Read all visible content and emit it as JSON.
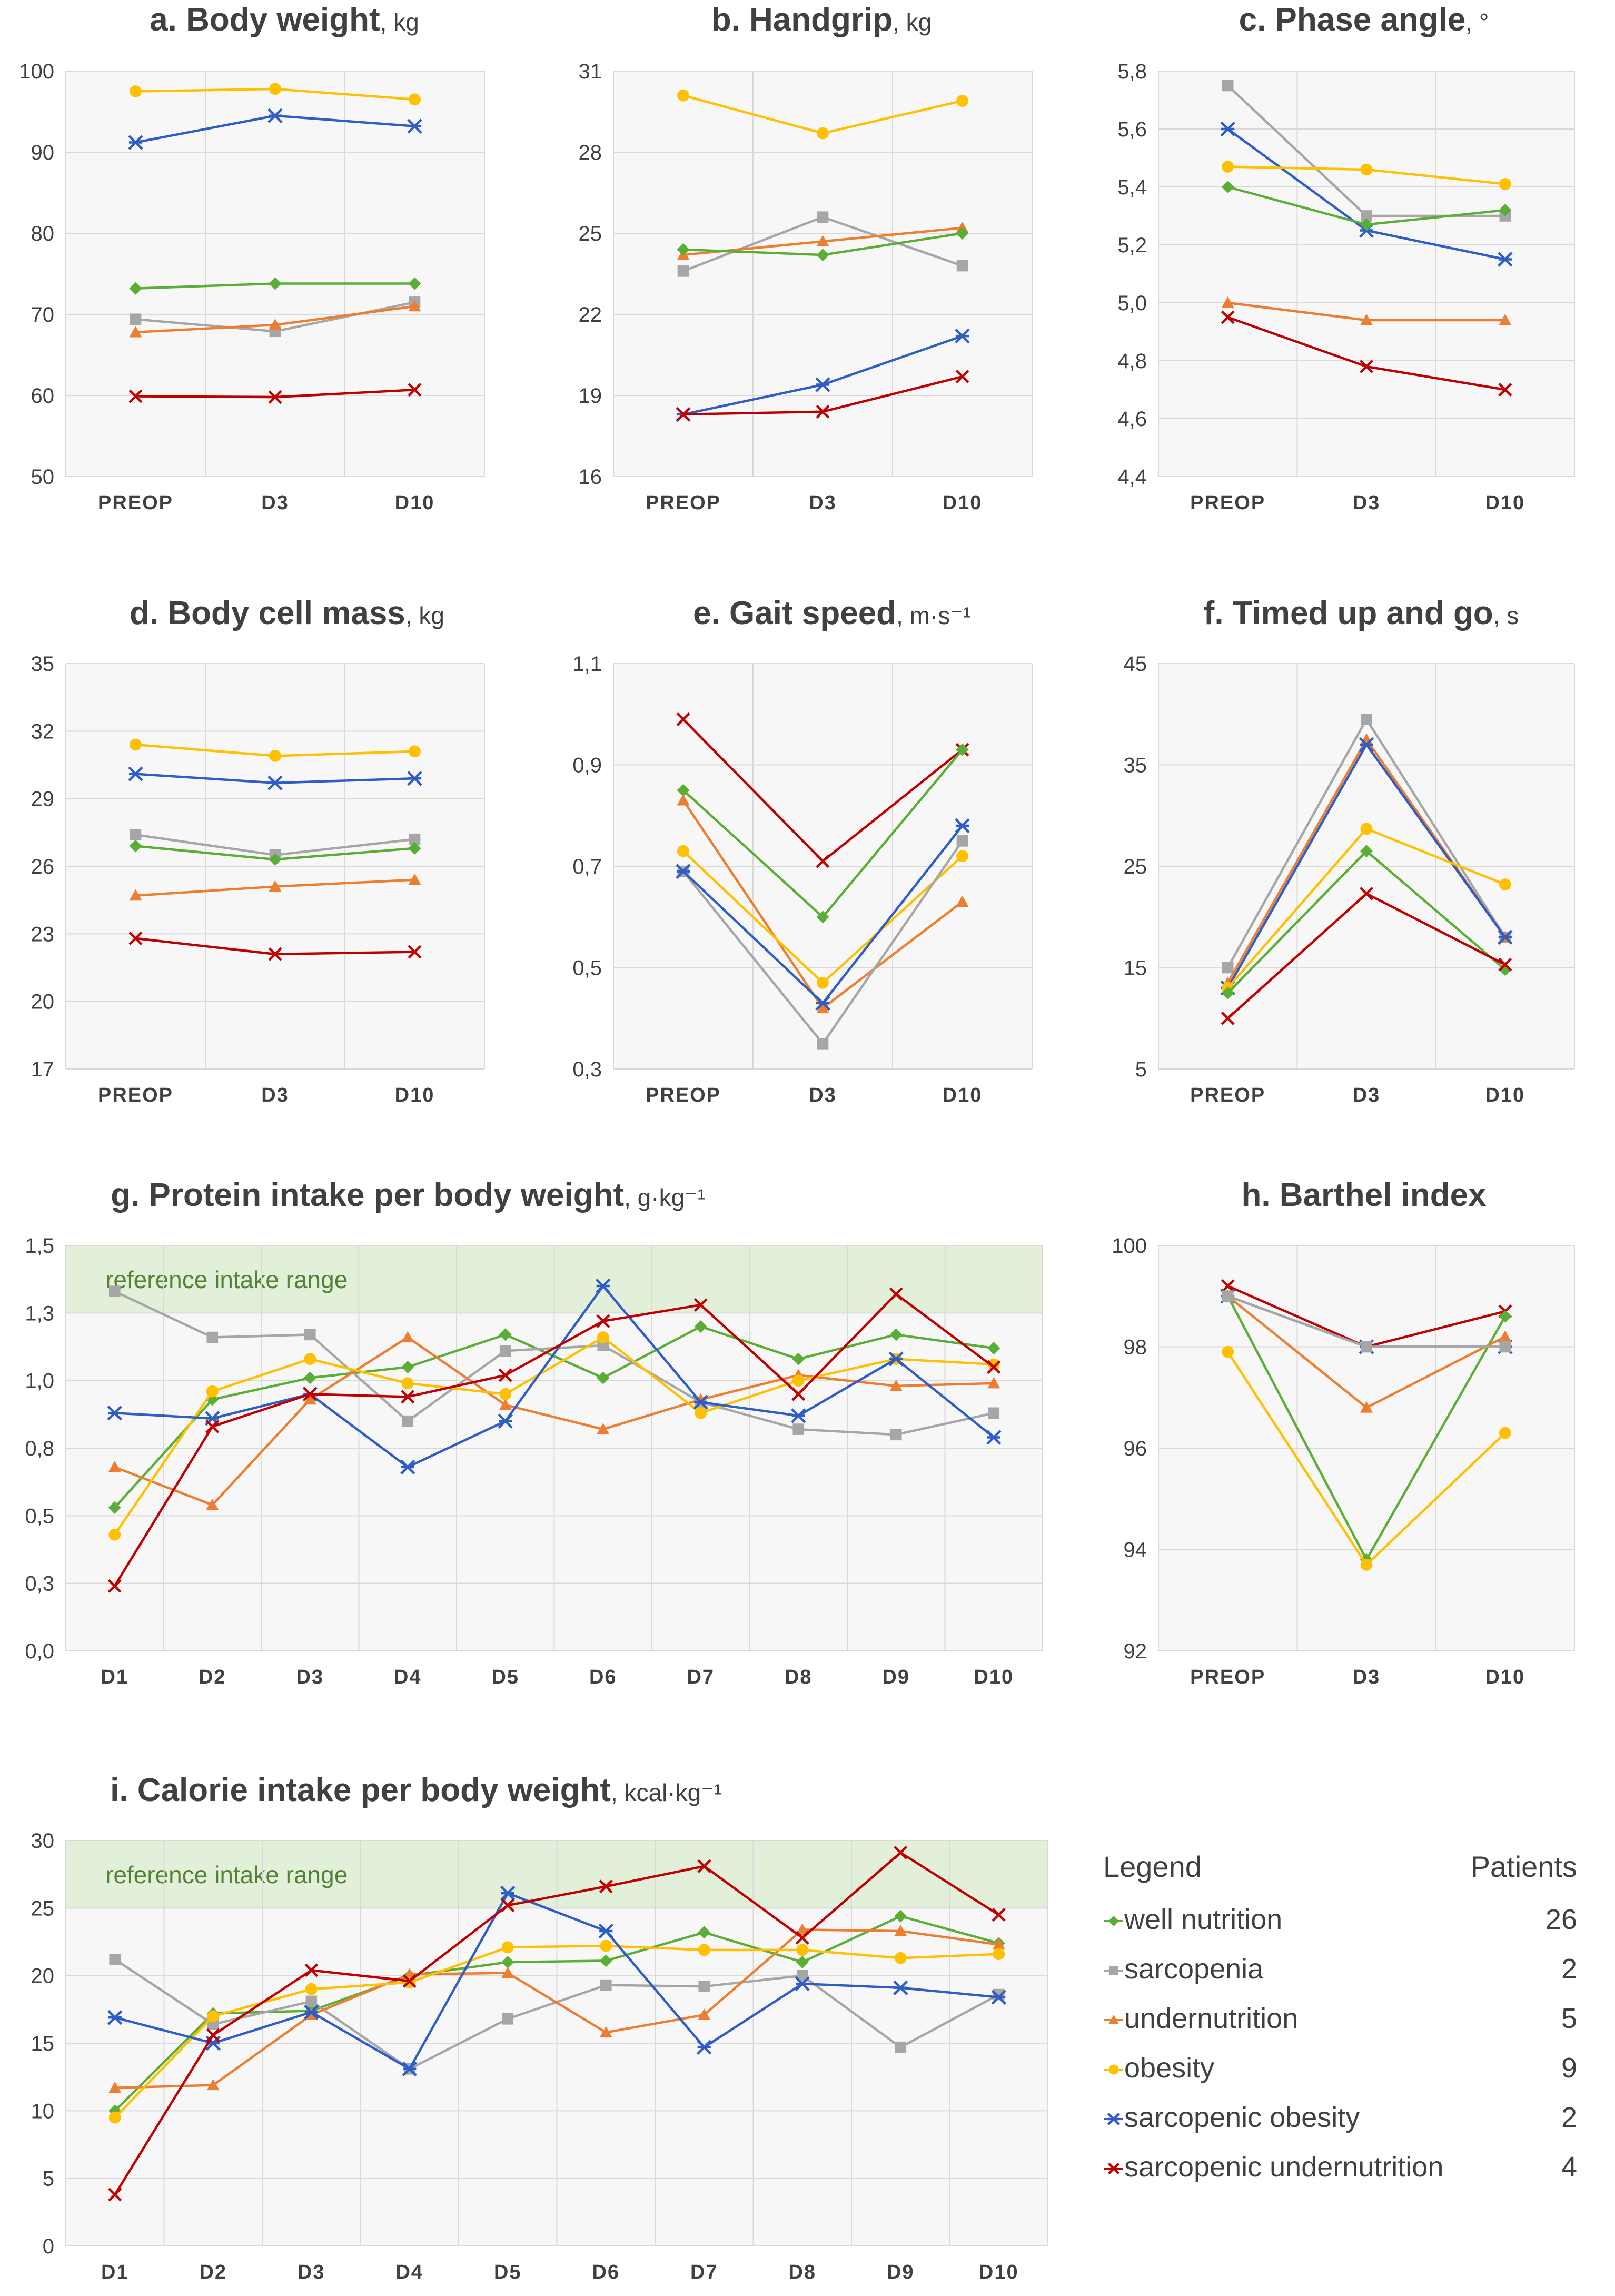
{
  "colors": {
    "well nutrition": "#5BAE35",
    "sarcopenia": "#A6A6A6",
    "undernutrition": "#ED7D31",
    "obesity": "#FFC000",
    "sarcopenic obesity": "#2E5DC6",
    "sarcopenic undernutrition": "#C00000",
    "grid": "#D9D9D9",
    "plot_bg": "#F7F7F7",
    "ref_band": "#E2EFD9",
    "ref_text": "#548235",
    "text": "#404040"
  },
  "markers": {
    "well nutrition": "diamond",
    "sarcopenia": "square",
    "undernutrition": "triangle",
    "obesity": "circle",
    "sarcopenic obesity": "asterisk",
    "sarcopenic undernutrition": "x"
  },
  "legend": {
    "title": "Legend",
    "count_header": "Patients",
    "entries": [
      {
        "name": "well nutrition",
        "count": "26"
      },
      {
        "name": "sarcopenia",
        "count": "2"
      },
      {
        "name": "undernutrition",
        "count": "5"
      },
      {
        "name": "obesity",
        "count": "9"
      },
      {
        "name": "sarcopenic obesity",
        "count": "2"
      },
      {
        "name": "sarcopenic undernutrition",
        "count": "4"
      }
    ]
  },
  "chart_data": [
    {
      "id": "a",
      "type": "line",
      "title": "a. Body weight",
      "unit": "kg",
      "categories": [
        "PREOP",
        "D3",
        "D10"
      ],
      "ylim": [
        50,
        100
      ],
      "yticks": [
        "50",
        "60",
        "70",
        "80",
        "90",
        "100"
      ],
      "series": [
        {
          "name": "obesity",
          "values": [
            97.5,
            97.8,
            96.5
          ]
        },
        {
          "name": "sarcopenic obesity",
          "values": [
            91.2,
            94.5,
            93.2
          ]
        },
        {
          "name": "well nutrition",
          "values": [
            73.2,
            73.8,
            73.8
          ]
        },
        {
          "name": "sarcopenia",
          "values": [
            69.4,
            67.9,
            71.5
          ]
        },
        {
          "name": "undernutrition",
          "values": [
            67.8,
            68.7,
            71.0
          ]
        },
        {
          "name": "sarcopenic undernutrition",
          "values": [
            59.9,
            59.8,
            60.7
          ]
        }
      ]
    },
    {
      "id": "b",
      "type": "line",
      "title": "b. Handgrip",
      "unit": "kg",
      "categories": [
        "PREOP",
        "D3",
        "D10"
      ],
      "ylim": [
        16,
        31
      ],
      "yticks": [
        "16",
        "19",
        "22",
        "25",
        "28",
        "31"
      ],
      "series": [
        {
          "name": "obesity",
          "values": [
            30.1,
            28.7,
            29.9
          ]
        },
        {
          "name": "sarcopenia",
          "values": [
            23.6,
            25.6,
            23.8
          ]
        },
        {
          "name": "undernutrition",
          "values": [
            24.2,
            24.7,
            25.2
          ]
        },
        {
          "name": "well nutrition",
          "values": [
            24.4,
            24.2,
            25.0
          ]
        },
        {
          "name": "sarcopenic obesity",
          "values": [
            18.3,
            19.4,
            21.2
          ]
        },
        {
          "name": "sarcopenic undernutrition",
          "values": [
            18.3,
            18.4,
            19.7
          ]
        }
      ]
    },
    {
      "id": "c",
      "type": "line",
      "title": "c. Phase angle",
      "unit": "°",
      "categories": [
        "PREOP",
        "D3",
        "D10"
      ],
      "ylim": [
        4.4,
        5.8
      ],
      "yticks": [
        "4,4",
        "4,6",
        "4,8",
        "5,0",
        "5,2",
        "5,4",
        "5,6",
        "5,8"
      ],
      "series": [
        {
          "name": "sarcopenia",
          "values": [
            5.75,
            5.3,
            5.3
          ]
        },
        {
          "name": "sarcopenic obesity",
          "values": [
            5.6,
            5.25,
            5.15
          ]
        },
        {
          "name": "obesity",
          "values": [
            5.47,
            5.46,
            5.41
          ]
        },
        {
          "name": "well nutrition",
          "values": [
            5.4,
            5.27,
            5.32
          ]
        },
        {
          "name": "undernutrition",
          "values": [
            5.0,
            4.94,
            4.94
          ]
        },
        {
          "name": "sarcopenic undernutrition",
          "values": [
            4.95,
            4.78,
            4.7
          ]
        }
      ]
    },
    {
      "id": "d",
      "type": "line",
      "title": "d. Body cell mass",
      "unit": "kg",
      "categories": [
        "PREOP",
        "D3",
        "D10"
      ],
      "ylim": [
        17,
        35
      ],
      "yticks": [
        "17",
        "20",
        "23",
        "26",
        "29",
        "32",
        "35"
      ],
      "series": [
        {
          "name": "obesity",
          "values": [
            31.4,
            30.9,
            31.1
          ]
        },
        {
          "name": "sarcopenic obesity",
          "values": [
            30.1,
            29.7,
            29.9
          ]
        },
        {
          "name": "sarcopenia",
          "values": [
            27.4,
            26.5,
            27.2
          ]
        },
        {
          "name": "well nutrition",
          "values": [
            26.9,
            26.3,
            26.8
          ]
        },
        {
          "name": "undernutrition",
          "values": [
            24.7,
            25.1,
            25.4
          ]
        },
        {
          "name": "sarcopenic undernutrition",
          "values": [
            22.8,
            22.1,
            22.2
          ]
        }
      ]
    },
    {
      "id": "e",
      "type": "line",
      "title": "e. Gait speed",
      "unit": "m·s⁻¹",
      "categories": [
        "PREOP",
        "D3",
        "D10"
      ],
      "ylim": [
        0.3,
        1.1
      ],
      "yticks": [
        "0,3",
        "0,5",
        "0,7",
        "0,9",
        "1,1"
      ],
      "series": [
        {
          "name": "sarcopenic undernutrition",
          "values": [
            0.99,
            0.71,
            0.93
          ]
        },
        {
          "name": "well nutrition",
          "values": [
            0.85,
            0.6,
            0.93
          ]
        },
        {
          "name": "undernutrition",
          "values": [
            0.83,
            0.42,
            0.63
          ]
        },
        {
          "name": "obesity",
          "values": [
            0.73,
            0.47,
            0.72
          ]
        },
        {
          "name": "sarcopenia",
          "values": [
            0.69,
            0.35,
            0.75
          ]
        },
        {
          "name": "sarcopenic obesity",
          "values": [
            0.69,
            0.43,
            0.78
          ]
        }
      ]
    },
    {
      "id": "f",
      "type": "line",
      "title": "f. Timed up and go",
      "unit": "s",
      "categories": [
        "PREOP",
        "D3",
        "D10"
      ],
      "ylim": [
        5,
        45
      ],
      "yticks": [
        "5",
        "15",
        "25",
        "35",
        "45"
      ],
      "series": [
        {
          "name": "sarcopenia",
          "values": [
            15.0,
            39.5,
            18.0
          ]
        },
        {
          "name": "undernutrition",
          "values": [
            13.5,
            37.5,
            18.0
          ]
        },
        {
          "name": "sarcopenic obesity",
          "values": [
            13.0,
            37.0,
            18.0
          ]
        },
        {
          "name": "obesity",
          "values": [
            13.0,
            28.7,
            23.2
          ]
        },
        {
          "name": "well nutrition",
          "values": [
            12.5,
            26.5,
            14.8
          ]
        },
        {
          "name": "sarcopenic undernutrition",
          "values": [
            10.0,
            22.3,
            15.3
          ]
        }
      ]
    },
    {
      "id": "g",
      "type": "line",
      "title": "g. Protein intake per body weight",
      "unit": "g·kg⁻¹",
      "categories": [
        "D1",
        "D2",
        "D3",
        "D4",
        "D5",
        "D6",
        "D7",
        "D8",
        "D9",
        "D10"
      ],
      "ylim": [
        0,
        1.5
      ],
      "yticks": [
        "0,0",
        "0,3",
        "0,5",
        "0,8",
        "1,0",
        "1,3",
        "1,5"
      ],
      "ref_band": [
        1.25,
        1.5
      ],
      "ref_label": "reference intake range",
      "series": [
        {
          "name": "well nutrition",
          "values": [
            0.53,
            0.93,
            1.01,
            1.05,
            1.17,
            1.01,
            1.2,
            1.08,
            1.17,
            1.12
          ]
        },
        {
          "name": "sarcopenia",
          "values": [
            1.33,
            1.16,
            1.17,
            0.85,
            1.11,
            1.13,
            0.92,
            0.82,
            0.8,
            0.88
          ]
        },
        {
          "name": "undernutrition",
          "values": [
            0.68,
            0.54,
            0.93,
            1.16,
            0.91,
            0.82,
            0.93,
            1.02,
            0.98,
            0.99
          ]
        },
        {
          "name": "obesity",
          "values": [
            0.43,
            0.96,
            1.08,
            0.99,
            0.95,
            1.16,
            0.88,
            1.0,
            1.08,
            1.06
          ]
        },
        {
          "name": "sarcopenic obesity",
          "values": [
            0.88,
            0.86,
            0.95,
            0.68,
            0.85,
            1.35,
            0.92,
            0.87,
            1.08,
            0.79
          ]
        },
        {
          "name": "sarcopenic undernutrition",
          "values": [
            0.24,
            0.83,
            0.95,
            0.94,
            1.02,
            1.22,
            1.28,
            0.95,
            1.32,
            1.05
          ]
        }
      ]
    },
    {
      "id": "h",
      "type": "line",
      "title": "h. Barthel index",
      "unit": "",
      "categories": [
        "PREOP",
        "D3",
        "D10"
      ],
      "ylim": [
        92,
        100
      ],
      "yticks": [
        "92",
        "94",
        "96",
        "98",
        "100"
      ],
      "series": [
        {
          "name": "sarcopenic undernutrition",
          "values": [
            99.2,
            98.0,
            98.7
          ]
        },
        {
          "name": "sarcopenic obesity",
          "values": [
            99.0,
            98.0,
            98.0
          ]
        },
        {
          "name": "well nutrition",
          "values": [
            99.0,
            93.8,
            98.6
          ]
        },
        {
          "name": "undernutrition",
          "values": [
            99.0,
            96.8,
            98.2
          ]
        },
        {
          "name": "sarcopenia",
          "values": [
            99.0,
            98.0,
            98.0
          ]
        },
        {
          "name": "obesity",
          "values": [
            97.9,
            93.7,
            96.3
          ]
        }
      ]
    },
    {
      "id": "i",
      "type": "line",
      "title": "i. Calorie intake per body weight",
      "unit": "kcal·kg⁻¹",
      "categories": [
        "D1",
        "D2",
        "D3",
        "D4",
        "D5",
        "D6",
        "D7",
        "D8",
        "D9",
        "D10"
      ],
      "ylim": [
        0,
        30
      ],
      "yticks": [
        "0",
        "5",
        "10",
        "15",
        "20",
        "25",
        "30"
      ],
      "ref_band": [
        25,
        30
      ],
      "ref_label": "reference intake range",
      "series": [
        {
          "name": "well nutrition",
          "values": [
            10.0,
            17.2,
            17.4,
            20.0,
            21.0,
            21.1,
            23.2,
            21.0,
            24.4,
            22.4
          ]
        },
        {
          "name": "sarcopenia",
          "values": [
            21.2,
            16.4,
            18.1,
            13.1,
            16.8,
            19.3,
            19.2,
            20.0,
            14.7,
            18.6
          ]
        },
        {
          "name": "undernutrition",
          "values": [
            11.7,
            11.9,
            17.1,
            20.1,
            20.2,
            15.8,
            17.1,
            23.4,
            23.3,
            22.3
          ]
        },
        {
          "name": "obesity",
          "values": [
            9.5,
            17.0,
            19.0,
            19.5,
            22.1,
            22.2,
            21.9,
            21.9,
            21.3,
            21.6
          ]
        },
        {
          "name": "sarcopenic obesity",
          "values": [
            16.9,
            15.0,
            17.3,
            13.1,
            26.1,
            23.3,
            14.7,
            19.4,
            19.1,
            18.4
          ]
        },
        {
          "name": "sarcopenic undernutrition",
          "values": [
            3.8,
            15.6,
            20.4,
            19.6,
            25.2,
            26.6,
            28.1,
            22.8,
            29.1,
            24.5
          ]
        }
      ]
    }
  ]
}
